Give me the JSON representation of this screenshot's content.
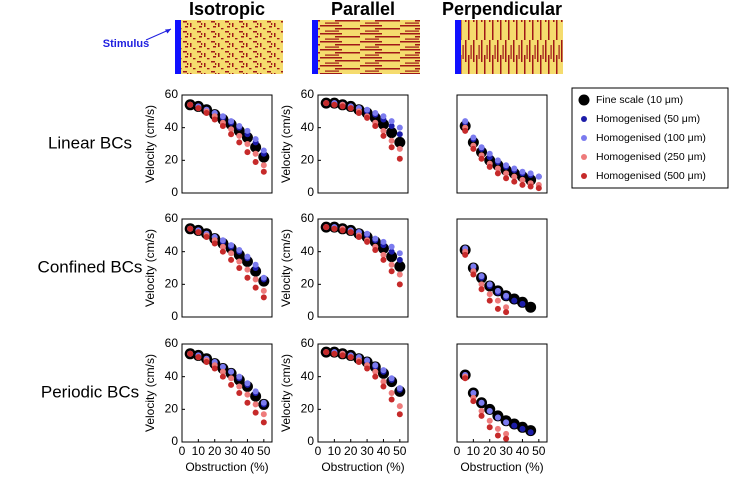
{
  "column_titles": [
    "Isotropic",
    "Parallel",
    "Perpendicular"
  ],
  "row_labels": [
    "Linear BCs",
    "Confined BCs",
    "Periodic BCs"
  ],
  "stimulus_label": "Stimulus",
  "chart_data": [
    {
      "type": "scatter",
      "ylabel": "Velocity (cm/s)",
      "x": [
        5,
        10,
        15,
        20,
        25,
        30,
        35,
        40,
        45,
        50
      ],
      "xlim": [
        0,
        55
      ],
      "ylim": [
        0,
        60
      ],
      "yticks": [
        0,
        20,
        40,
        60
      ],
      "series": [
        {
          "color": "#000000",
          "values": [
            54,
            53,
            51,
            48,
            45,
            42,
            38,
            34,
            28,
            22
          ]
        },
        {
          "color": "#1c1ca8",
          "values": [
            54,
            53,
            51,
            49,
            46,
            43,
            40,
            36,
            31,
            24
          ]
        },
        {
          "color": "#7b7bef",
          "values": [
            54,
            53,
            51,
            49,
            47,
            44,
            41,
            38,
            33,
            26
          ]
        },
        {
          "color": "#ee7b7b",
          "values": [
            54,
            52,
            50,
            47,
            43,
            39,
            35,
            30,
            24,
            17
          ]
        },
        {
          "color": "#c62a2a",
          "values": [
            54,
            52,
            49,
            45,
            41,
            36,
            31,
            25,
            19,
            13
          ]
        }
      ]
    },
    {
      "type": "scatter",
      "ylabel": "Velocity (cm/s)",
      "x": [
        5,
        10,
        15,
        20,
        25,
        30,
        35,
        40,
        45,
        50
      ],
      "xlim": [
        0,
        55
      ],
      "ylim": [
        0,
        60
      ],
      "yticks": [
        0,
        20,
        40,
        60
      ],
      "series": [
        {
          "color": "#000000",
          "values": [
            55,
            55,
            54,
            53,
            51,
            49,
            46,
            42,
            37,
            31
          ]
        },
        {
          "color": "#1c1ca8",
          "values": [
            55,
            55,
            54,
            53,
            52,
            50,
            48,
            45,
            41,
            36
          ]
        },
        {
          "color": "#7b7bef",
          "values": [
            55,
            55,
            54,
            53,
            52,
            51,
            49,
            47,
            44,
            40
          ]
        },
        {
          "color": "#ee7b7b",
          "values": [
            55,
            54,
            54,
            52,
            50,
            47,
            43,
            38,
            32,
            27
          ]
        },
        {
          "color": "#c62a2a",
          "values": [
            55,
            54,
            53,
            52,
            49,
            46,
            41,
            35,
            28,
            21
          ]
        }
      ]
    },
    {
      "type": "scatter",
      "legend": "right",
      "x": [
        5,
        10,
        15,
        20,
        25,
        30,
        35,
        40,
        45,
        50
      ],
      "xlim": [
        0,
        55
      ],
      "ylim": [
        0,
        60
      ],
      "series": [
        {
          "name": "Fine scale (10 μm)",
          "color": "#000000",
          "values": [
            41,
            31,
            25,
            20,
            17,
            14,
            12,
            10,
            8,
            null
          ]
        },
        {
          "name": "Homogenised (50 μm)",
          "color": "#1c1ca8",
          "values": [
            43,
            33,
            27,
            22,
            19,
            16,
            14,
            12,
            11,
            10
          ]
        },
        {
          "name": "Homogenised (100 μm)",
          "color": "#7b7bef",
          "values": [
            44,
            34,
            28,
            24,
            20,
            17,
            15,
            13,
            12,
            10
          ]
        },
        {
          "name": "Homogenised (250 μm)",
          "color": "#ee7b7b",
          "values": [
            40,
            29,
            23,
            18,
            15,
            12,
            10,
            8,
            6,
            5
          ]
        },
        {
          "name": "Homogenised (500 μm)",
          "color": "#c62a2a",
          "values": [
            38,
            27,
            21,
            16,
            12,
            9,
            7,
            5,
            4,
            3
          ]
        }
      ]
    },
    {
      "type": "scatter",
      "ylabel": "Velocity (cm/s)",
      "x": [
        5,
        10,
        15,
        20,
        25,
        30,
        35,
        40,
        45,
        50
      ],
      "xlim": [
        0,
        55
      ],
      "ylim": [
        0,
        60
      ],
      "yticks": [
        0,
        20,
        40,
        60
      ],
      "series": [
        {
          "color": "#000000",
          "values": [
            54,
            53,
            51,
            48,
            45,
            42,
            38,
            34,
            28,
            22
          ]
        },
        {
          "color": "#1c1ca8",
          "values": [
            54,
            53,
            51,
            49,
            46,
            43,
            40,
            36,
            30,
            23
          ]
        },
        {
          "color": "#7b7bef",
          "values": [
            54,
            53,
            51,
            49,
            47,
            44,
            41,
            37,
            32,
            24
          ]
        },
        {
          "color": "#ee7b7b",
          "values": [
            54,
            52,
            50,
            47,
            43,
            39,
            34,
            29,
            23,
            16
          ]
        },
        {
          "color": "#c62a2a",
          "values": [
            54,
            52,
            49,
            45,
            40,
            35,
            30,
            24,
            18,
            12
          ]
        }
      ]
    },
    {
      "type": "scatter",
      "ylabel": "Velocity (cm/s)",
      "x": [
        5,
        10,
        15,
        20,
        25,
        30,
        35,
        40,
        45,
        50
      ],
      "xlim": [
        0,
        55
      ],
      "ylim": [
        0,
        60
      ],
      "yticks": [
        0,
        20,
        40,
        60
      ],
      "series": [
        {
          "color": "#000000",
          "values": [
            55,
            55,
            54,
            53,
            51,
            49,
            46,
            42,
            37,
            31
          ]
        },
        {
          "color": "#1c1ca8",
          "values": [
            55,
            55,
            54,
            53,
            52,
            50,
            47,
            44,
            40,
            35
          ]
        },
        {
          "color": "#7b7bef",
          "values": [
            55,
            55,
            54,
            53,
            52,
            51,
            48,
            46,
            43,
            39
          ]
        },
        {
          "color": "#ee7b7b",
          "values": [
            55,
            54,
            54,
            52,
            50,
            47,
            43,
            38,
            32,
            26
          ]
        },
        {
          "color": "#c62a2a",
          "values": [
            55,
            54,
            53,
            52,
            49,
            46,
            41,
            35,
            28,
            20
          ]
        }
      ]
    },
    {
      "type": "scatter",
      "x": [
        5,
        10,
        15,
        20,
        25,
        30,
        35,
        40,
        45,
        50
      ],
      "xlim": [
        0,
        55
      ],
      "ylim": [
        0,
        60
      ],
      "series": [
        {
          "color": "#000000",
          "values": [
            41,
            30,
            24,
            19,
            16,
            13,
            11,
            9,
            6,
            null
          ]
        },
        {
          "color": "#1c1ca8",
          "values": [
            41,
            30,
            24,
            19,
            15,
            12,
            10,
            8,
            null,
            null
          ]
        },
        {
          "color": "#7b7bef",
          "values": [
            42,
            31,
            25,
            20,
            16,
            13,
            null,
            null,
            null,
            null
          ]
        },
        {
          "color": "#ee7b7b",
          "values": [
            40,
            28,
            20,
            14,
            10,
            6,
            null,
            null,
            null,
            null
          ]
        },
        {
          "color": "#c62a2a",
          "values": [
            38,
            26,
            17,
            10,
            5,
            3,
            null,
            null,
            null,
            null
          ]
        }
      ]
    },
    {
      "type": "scatter",
      "xlabel": "Obstruction (%)",
      "ylabel": "Velocity (cm/s)",
      "x": [
        5,
        10,
        15,
        20,
        25,
        30,
        35,
        40,
        45,
        50
      ],
      "xlim": [
        0,
        55
      ],
      "ylim": [
        0,
        60
      ],
      "xticks": [
        0,
        10,
        20,
        30,
        40,
        50
      ],
      "yticks": [
        0,
        20,
        40,
        60
      ],
      "series": [
        {
          "color": "#000000",
          "values": [
            54,
            53,
            51,
            48,
            45,
            42,
            38,
            34,
            28,
            23
          ]
        },
        {
          "color": "#1c1ca8",
          "values": [
            54,
            53,
            51,
            48,
            46,
            43,
            39,
            35,
            30,
            23
          ]
        },
        {
          "color": "#7b7bef",
          "values": [
            54,
            53,
            51,
            49,
            46,
            43,
            40,
            36,
            31,
            24
          ]
        },
        {
          "color": "#ee7b7b",
          "values": [
            54,
            52,
            50,
            47,
            43,
            39,
            34,
            29,
            23,
            17
          ]
        },
        {
          "color": "#c62a2a",
          "values": [
            54,
            52,
            49,
            45,
            40,
            35,
            30,
            24,
            18,
            12
          ]
        }
      ]
    },
    {
      "type": "scatter",
      "xlabel": "Obstruction (%)",
      "ylabel": "Velocity (cm/s)",
      "x": [
        5,
        10,
        15,
        20,
        25,
        30,
        35,
        40,
        45,
        50
      ],
      "xlim": [
        0,
        55
      ],
      "ylim": [
        0,
        60
      ],
      "xticks": [
        0,
        10,
        20,
        30,
        40,
        50
      ],
      "yticks": [
        0,
        20,
        40,
        60
      ],
      "series": [
        {
          "color": "#000000",
          "values": [
            55,
            55,
            54,
            53,
            51,
            49,
            46,
            42,
            37,
            31
          ]
        },
        {
          "color": "#1c1ca8",
          "values": [
            55,
            55,
            54,
            53,
            51,
            49,
            46,
            43,
            38,
            32
          ]
        },
        {
          "color": "#7b7bef",
          "values": [
            55,
            55,
            54,
            53,
            52,
            50,
            47,
            44,
            39,
            33
          ]
        },
        {
          "color": "#ee7b7b",
          "values": [
            55,
            54,
            54,
            52,
            50,
            47,
            43,
            37,
            30,
            22
          ]
        },
        {
          "color": "#c62a2a",
          "values": [
            55,
            54,
            53,
            52,
            49,
            45,
            40,
            34,
            26,
            17
          ]
        }
      ]
    },
    {
      "type": "scatter",
      "xlabel": "Obstruction (%)",
      "x": [
        5,
        10,
        15,
        20,
        25,
        30,
        35,
        40,
        45,
        50
      ],
      "xlim": [
        0,
        55
      ],
      "ylim": [
        0,
        60
      ],
      "xticks": [
        0,
        10,
        20,
        30,
        40,
        50
      ],
      "series": [
        {
          "color": "#000000",
          "values": [
            41,
            30,
            24,
            20,
            16,
            13,
            11,
            9,
            7,
            null
          ]
        },
        {
          "color": "#1c1ca8",
          "values": [
            41,
            30,
            24,
            19,
            15,
            12,
            10,
            8,
            6,
            null
          ]
        },
        {
          "color": "#7b7bef",
          "values": [
            41,
            30,
            24,
            19,
            15,
            12,
            null,
            null,
            null,
            null
          ]
        },
        {
          "color": "#ee7b7b",
          "values": [
            40,
            27,
            19,
            13,
            8,
            5,
            null,
            null,
            null,
            null
          ]
        },
        {
          "color": "#c62a2a",
          "values": [
            39,
            25,
            16,
            9,
            4,
            2,
            null,
            null,
            null,
            null
          ]
        }
      ]
    }
  ]
}
